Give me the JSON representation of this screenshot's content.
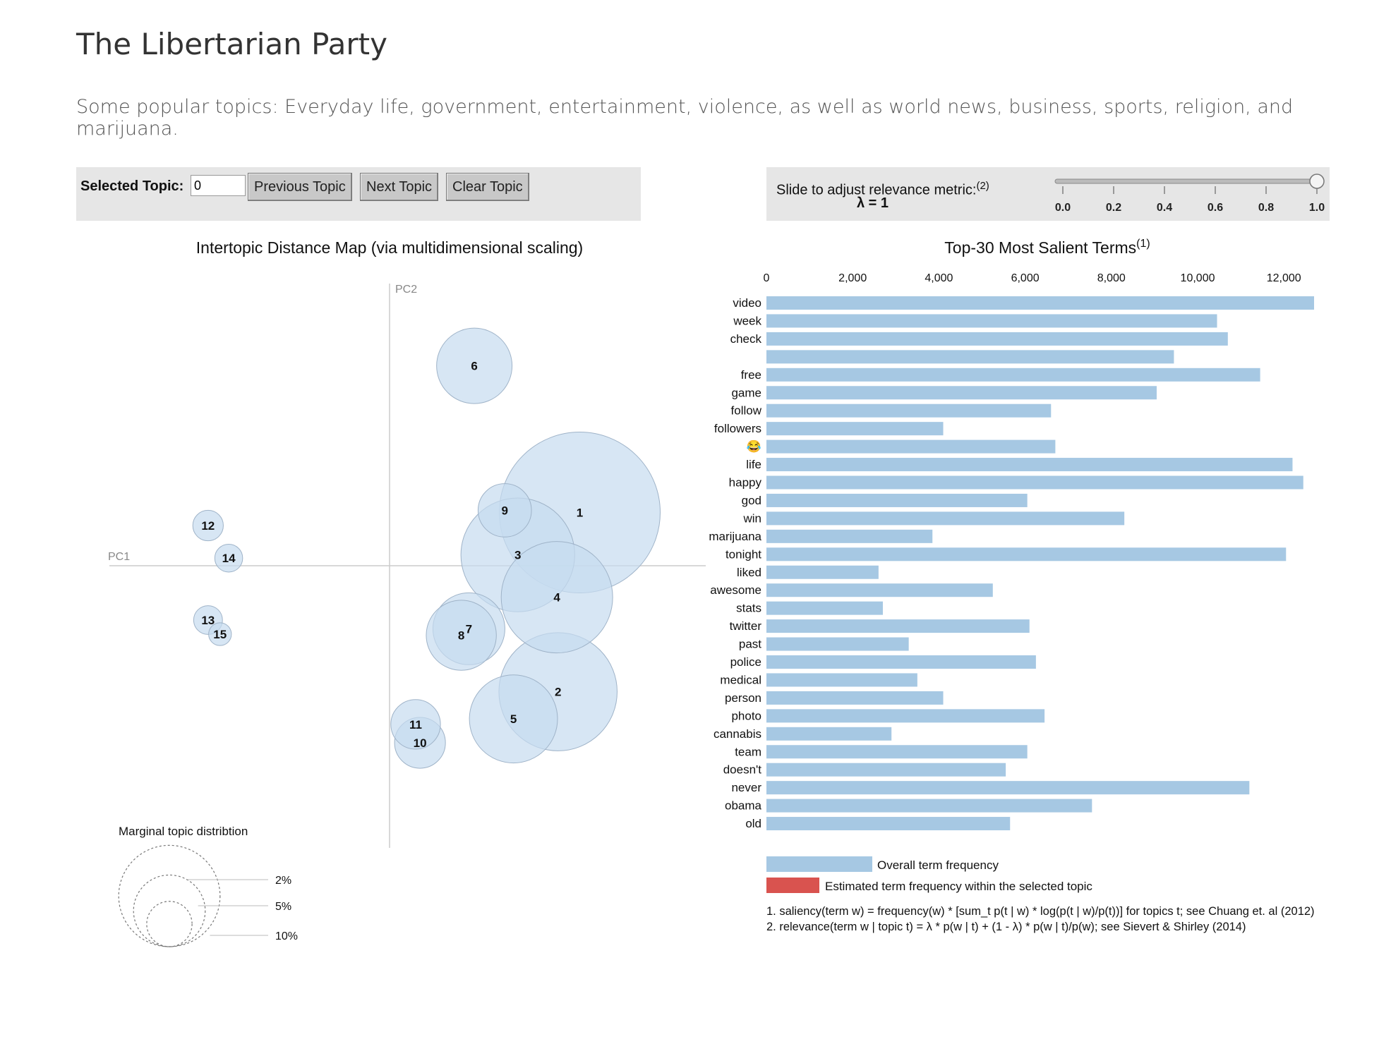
{
  "page": {
    "title": "The Libertarian Party",
    "subtitle": "Some popular topics: Everyday life, government, entertainment, violence, as well as world news, business, sports, religion, and marijuana."
  },
  "topic_controls": {
    "label": "Selected Topic:",
    "value": "0",
    "prev_label": "Previous Topic",
    "next_label": "Next Topic",
    "clear_label": "Clear Topic"
  },
  "lambda_controls": {
    "label": "Slide to adjust relevance metric:",
    "footnote_ref": "(2)",
    "value_label": "λ = 1",
    "value": 1.0,
    "ticks": [
      "0.0",
      "0.2",
      "0.4",
      "0.6",
      "0.8",
      "1.0"
    ]
  },
  "colors": {
    "bar": "#a6c8e3",
    "topic_bar": "#d9534f",
    "circle_fill": "#c6dbef",
    "circle_stroke": "#9fb3c8",
    "panel_bg": "#e6e6e6"
  },
  "chart_data": [
    {
      "type": "scatter",
      "title": "Intertopic Distance Map (via multidimensional scaling)",
      "xlabel": "PC1",
      "ylabel": "PC2",
      "topics": [
        {
          "id": "1",
          "x": 0.175,
          "y": 0.049,
          "size": 10.0
        },
        {
          "id": "2",
          "x": 0.155,
          "y": -0.116,
          "size": 5.4
        },
        {
          "id": "3",
          "x": 0.118,
          "y": 0.01,
          "size": 5.0
        },
        {
          "id": "4",
          "x": 0.154,
          "y": -0.029,
          "size": 4.8
        },
        {
          "id": "5",
          "x": 0.114,
          "y": -0.141,
          "size": 3.0
        },
        {
          "id": "6",
          "x": 0.078,
          "y": 0.184,
          "size": 2.2
        },
        {
          "id": "7",
          "x": 0.073,
          "y": -0.058,
          "size": 2.0
        },
        {
          "id": "8",
          "x": 0.066,
          "y": -0.064,
          "size": 1.9
        },
        {
          "id": "9",
          "x": 0.106,
          "y": 0.051,
          "size": 1.1
        },
        {
          "id": "10",
          "x": 0.028,
          "y": -0.163,
          "size": 1.0
        },
        {
          "id": "11",
          "x": 0.024,
          "y": -0.146,
          "size": 0.95
        },
        {
          "id": "12",
          "x": -0.167,
          "y": 0.037,
          "size": 0.36
        },
        {
          "id": "13",
          "x": -0.167,
          "y": -0.05,
          "size": 0.32
        },
        {
          "id": "14",
          "x": -0.148,
          "y": 0.007,
          "size": 0.3
        },
        {
          "id": "15",
          "x": -0.156,
          "y": -0.063,
          "size": 0.2
        }
      ],
      "legend": {
        "title": "Marginal topic distribtion",
        "sizes": [
          {
            "label": "2%",
            "size": 2
          },
          {
            "label": "5%",
            "size": 5
          },
          {
            "label": "10%",
            "size": 10
          }
        ]
      }
    },
    {
      "type": "bar",
      "orientation": "horizontal",
      "title": "Top-30 Most Salient Terms",
      "title_footnote": "(1)",
      "xlim": [
        0,
        12700
      ],
      "xticks": [
        "0",
        "2,000",
        "4,000",
        "6,000",
        "8,000",
        "10,000",
        "12,000"
      ],
      "terms": [
        "video",
        "week",
        "check",
        "",
        "free",
        "game",
        "follow",
        "followers",
        "😂",
        "life",
        "happy",
        "god",
        "win",
        "marijuana",
        "tonight",
        "liked",
        "awesome",
        "stats",
        "twitter",
        "past",
        "police",
        "medical",
        "person",
        "photo",
        "cannabis",
        "team",
        "doesn't",
        "never",
        "obama",
        "old"
      ],
      "values": [
        12700,
        10450,
        10700,
        9450,
        11450,
        9050,
        6600,
        4100,
        6700,
        12200,
        12450,
        6050,
        8300,
        3850,
        12050,
        2600,
        5250,
        2700,
        6100,
        3300,
        6250,
        3500,
        4100,
        6450,
        2900,
        6050,
        5550,
        11200,
        7550,
        5650
      ],
      "legend": {
        "overall": "Overall term frequency",
        "topic": "Estimated term frequency within the selected topic"
      },
      "notes": [
        "1. saliency(term w) = frequency(w) * [sum_t p(t | w) * log(p(t | w)/p(t))] for topics t; see Chuang et. al (2012)",
        "2. relevance(term w | topic t) = λ * p(w | t) + (1 - λ) * p(w | t)/p(w); see Sievert & Shirley (2014)"
      ]
    }
  ]
}
